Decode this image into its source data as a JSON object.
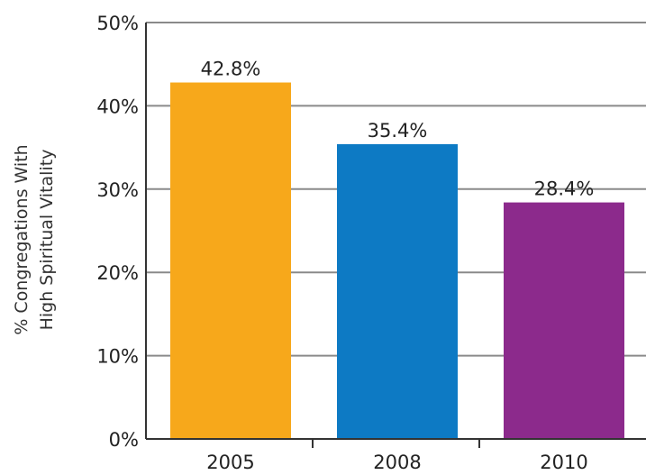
{
  "chart_data": {
    "type": "bar",
    "categories": [
      "2005",
      "2008",
      "2010"
    ],
    "values": [
      42.8,
      35.4,
      28.4
    ],
    "value_labels": [
      "42.8%",
      "35.4%",
      "28.4%"
    ],
    "colors": [
      "#F7A81B",
      "#0D7AC4",
      "#8C2A8C"
    ],
    "title": "",
    "xlabel": "",
    "ylabel_lines": [
      "% Congregations With",
      "High Spiritual Vitality"
    ],
    "ylim": [
      0,
      50
    ],
    "yticks": [
      0,
      10,
      20,
      30,
      40,
      50
    ],
    "ytick_labels": [
      "0%",
      "10%",
      "20%",
      "30%",
      "40%",
      "50%"
    ],
    "grid": true
  }
}
